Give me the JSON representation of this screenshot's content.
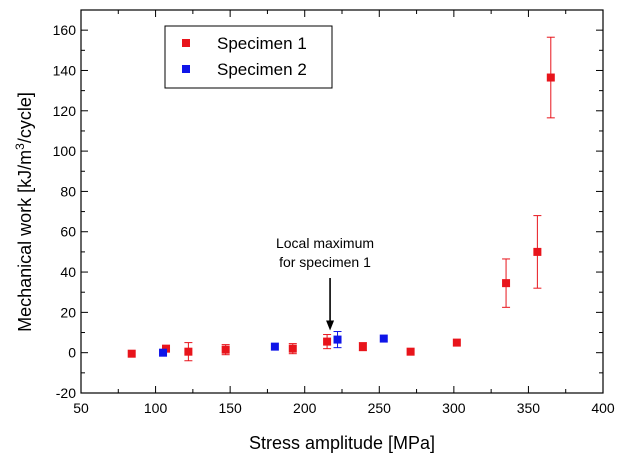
{
  "chart_data": {
    "type": "scatter",
    "xlabel": "Stress amplitude [MPa]",
    "ylabel_parts": [
      "Mechanical work [kJ/m",
      "3",
      "/cycle]"
    ],
    "xlim": [
      50,
      400
    ],
    "ylim": [
      -20,
      170
    ],
    "xticks": [
      50,
      100,
      150,
      200,
      250,
      300,
      350,
      400
    ],
    "yticks": [
      -20,
      0,
      20,
      40,
      60,
      80,
      100,
      120,
      140,
      160
    ],
    "grid": false,
    "legend_position": "top-left",
    "series": [
      {
        "name": "Specimen 1",
        "color": "#e8141b",
        "marker": "square",
        "points": [
          {
            "x": 84,
            "y": -0.5,
            "err": 0
          },
          {
            "x": 107,
            "y": 2,
            "err": 0
          },
          {
            "x": 122,
            "y": 0.5,
            "err": 4.5
          },
          {
            "x": 147,
            "y": 1.5,
            "err": 2.5
          },
          {
            "x": 192,
            "y": 2,
            "err": 2.5
          },
          {
            "x": 215,
            "y": 5.5,
            "err": 3.5
          },
          {
            "x": 239,
            "y": 3,
            "err": 2
          },
          {
            "x": 271,
            "y": 0.5,
            "err": 0
          },
          {
            "x": 302,
            "y": 5,
            "err": 0
          },
          {
            "x": 335,
            "y": 34.5,
            "err": 12
          },
          {
            "x": 356,
            "y": 50,
            "err": 18
          },
          {
            "x": 365,
            "y": 136.5,
            "err": 20
          }
        ]
      },
      {
        "name": "Specimen 2",
        "color": "#0f15e8",
        "marker": "square",
        "points": [
          {
            "x": 105,
            "y": 0,
            "err": 0
          },
          {
            "x": 180,
            "y": 3,
            "err": 0
          },
          {
            "x": 222,
            "y": 6.5,
            "err": 4
          },
          {
            "x": 253,
            "y": 7,
            "err": 0
          }
        ]
      }
    ],
    "annotation": {
      "lines": [
        "Local maximum",
        "for specimen 1"
      ],
      "target": {
        "x": 217,
        "y": 11
      }
    }
  }
}
